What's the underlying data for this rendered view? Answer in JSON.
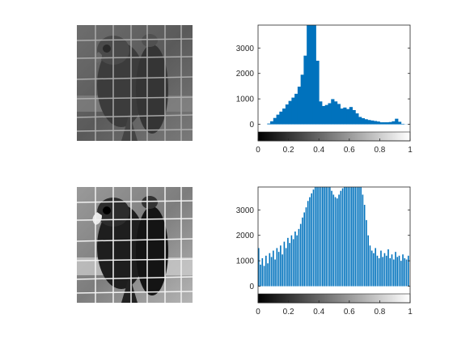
{
  "figure": {
    "description_panels": [
      "original-image",
      "histogram-original",
      "equalized-image",
      "histogram-equalized"
    ]
  },
  "images": {
    "original": {
      "kind": "grayscale-photo",
      "subject": "parrot behind cage bars",
      "contrast": "low"
    },
    "equalized": {
      "kind": "grayscale-photo",
      "subject": "parrot behind cage bars",
      "contrast": "high"
    }
  },
  "colors": {
    "bar": "#0072BD",
    "axis": "#262626"
  },
  "chart_data": [
    {
      "type": "bar",
      "xlim": [
        0,
        1
      ],
      "ylim": [
        -300,
        3900
      ],
      "xticks": [
        "0",
        "0.2",
        "0.4",
        "0.6",
        "0.8",
        "1"
      ],
      "yticks": [
        "0",
        "1000",
        "2000",
        "3000"
      ],
      "colorbar": "grayscale",
      "x": [
        0.0,
        0.02,
        0.04,
        0.06,
        0.08,
        0.1,
        0.12,
        0.14,
        0.16,
        0.18,
        0.2,
        0.22,
        0.24,
        0.26,
        0.28,
        0.3,
        0.32,
        0.34,
        0.36,
        0.38,
        0.4,
        0.42,
        0.44,
        0.46,
        0.48,
        0.5,
        0.52,
        0.54,
        0.56,
        0.58,
        0.6,
        0.62,
        0.64,
        0.66,
        0.68,
        0.7,
        0.72,
        0.74,
        0.76,
        0.78,
        0.8,
        0.82,
        0.84,
        0.86,
        0.88,
        0.9,
        0.92,
        0.94,
        0.96,
        0.98
      ],
      "values": [
        0,
        0,
        0,
        30,
        120,
        250,
        380,
        500,
        620,
        780,
        920,
        1050,
        1200,
        1480,
        1950,
        2700,
        3900,
        3900,
        3900,
        2500,
        900,
        720,
        760,
        830,
        990,
        900,
        800,
        620,
        660,
        600,
        680,
        560,
        430,
        290,
        240,
        200,
        170,
        150,
        130,
        110,
        80,
        80,
        80,
        90,
        120,
        220,
        100,
        20,
        5,
        0
      ]
    },
    {
      "type": "bar",
      "xlim": [
        0,
        1
      ],
      "ylim": [
        -300,
        3900
      ],
      "xticks": [
        "0",
        "0.2",
        "0.4",
        "0.6",
        "0.8",
        "1"
      ],
      "yticks": [
        "0",
        "1000",
        "2000",
        "3000"
      ],
      "colorbar": "grayscale",
      "x": [
        0.0,
        0.012,
        0.024,
        0.036,
        0.048,
        0.06,
        0.072,
        0.084,
        0.096,
        0.108,
        0.12,
        0.132,
        0.144,
        0.156,
        0.168,
        0.18,
        0.192,
        0.204,
        0.216,
        0.228,
        0.24,
        0.252,
        0.264,
        0.276,
        0.288,
        0.3,
        0.312,
        0.324,
        0.336,
        0.348,
        0.36,
        0.372,
        0.384,
        0.396,
        0.408,
        0.42,
        0.432,
        0.444,
        0.456,
        0.468,
        0.48,
        0.492,
        0.504,
        0.516,
        0.528,
        0.54,
        0.552,
        0.564,
        0.576,
        0.588,
        0.6,
        0.612,
        0.624,
        0.636,
        0.648,
        0.66,
        0.672,
        0.684,
        0.696,
        0.708,
        0.72,
        0.732,
        0.744,
        0.756,
        0.768,
        0.78,
        0.792,
        0.804,
        0.816,
        0.828,
        0.84,
        0.852,
        0.864,
        0.876,
        0.888,
        0.9,
        0.912,
        0.924,
        0.936,
        0.948,
        0.96,
        0.972,
        0.984
      ],
      "values": [
        1500,
        850,
        1100,
        800,
        1200,
        900,
        1300,
        1150,
        1400,
        1050,
        1500,
        1350,
        1600,
        1250,
        1750,
        1500,
        1900,
        1700,
        2000,
        1850,
        2150,
        2000,
        2250,
        2450,
        2700,
        2900,
        3100,
        3350,
        3500,
        3650,
        3800,
        3900,
        3900,
        3900,
        3900,
        3900,
        3900,
        3900,
        3900,
        3900,
        3750,
        3600,
        3500,
        3450,
        3600,
        3750,
        3850,
        3900,
        3900,
        3900,
        3900,
        3900,
        3900,
        3900,
        3900,
        3900,
        3900,
        3600,
        3200,
        2600,
        2000,
        1600,
        1400,
        1300,
        1500,
        1200,
        1100,
        1400,
        1150,
        1300,
        1200,
        1450,
        1100,
        1250,
        1050,
        1350,
        1150,
        1200,
        1000,
        1250,
        1100,
        1050,
        1200
      ]
    }
  ]
}
